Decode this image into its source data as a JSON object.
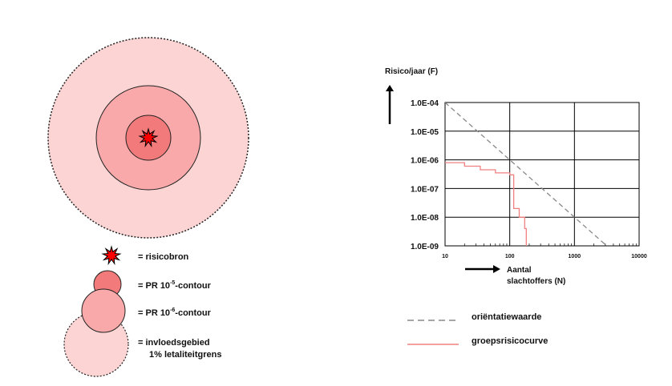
{
  "left_diagram": {
    "circle_fill_colors": [
      "#fdd4d4",
      "#f9a9a9",
      "#f27a7a",
      "#ff0000"
    ],
    "legend": [
      {
        "icon": "explosion-icon",
        "prefix": "= ",
        "text": "risicobron"
      },
      {
        "icon": "pr-10-5-circle-icon",
        "prefix": "= PR 10",
        "sup": "-5",
        "suffix": "-contour"
      },
      {
        "icon": "pr-10-6-circle-icon",
        "prefix": "= PR 10",
        "sup": "-6",
        "suffix": "-contour"
      },
      {
        "icon": "influence-area-circle-icon",
        "prefix": "= ",
        "text": "invloedsgebied",
        "line2": "1% letaliteitgrens"
      }
    ]
  },
  "chart_data": {
    "type": "line",
    "ylabel": "Risico/jaar (F)",
    "xlabel_line1": "Aantal",
    "xlabel_line2": "slachtoffers (N)",
    "x_scale": "log",
    "y_scale": "log",
    "xlim": [
      10,
      10000
    ],
    "ylim": [
      1e-09,
      0.0001
    ],
    "x_ticks": [
      "10",
      "100",
      "1000",
      "10000"
    ],
    "y_ticks": [
      "1.0E-09",
      "1.0E-08",
      "1.0E-07",
      "1.0E-06",
      "1.0E-05",
      "1.0E-04"
    ],
    "grid": true,
    "series": [
      {
        "name": "oriëntatiewaarde",
        "style": "dashed",
        "color": "#888888",
        "points": [
          [
            10,
            0.0001
          ],
          [
            1000,
            1e-08
          ],
          [
            10000,
            1e-10
          ]
        ]
      },
      {
        "name": "groepsrisicocurve",
        "style": "step",
        "color": "#f08080",
        "points": [
          [
            10,
            8e-07
          ],
          [
            20,
            8e-07
          ],
          [
            20,
            6e-07
          ],
          [
            35,
            6e-07
          ],
          [
            35,
            4.5e-07
          ],
          [
            60,
            4.5e-07
          ],
          [
            60,
            3.5e-07
          ],
          [
            100,
            3.5e-07
          ],
          [
            100,
            3e-07
          ],
          [
            115,
            3e-07
          ],
          [
            115,
            2e-08
          ],
          [
            140,
            2e-08
          ],
          [
            140,
            1e-08
          ],
          [
            170,
            1e-08
          ],
          [
            170,
            4e-09
          ],
          [
            180,
            4e-09
          ],
          [
            180,
            1e-09
          ]
        ]
      }
    ],
    "legend_placement": "bottom-left"
  }
}
